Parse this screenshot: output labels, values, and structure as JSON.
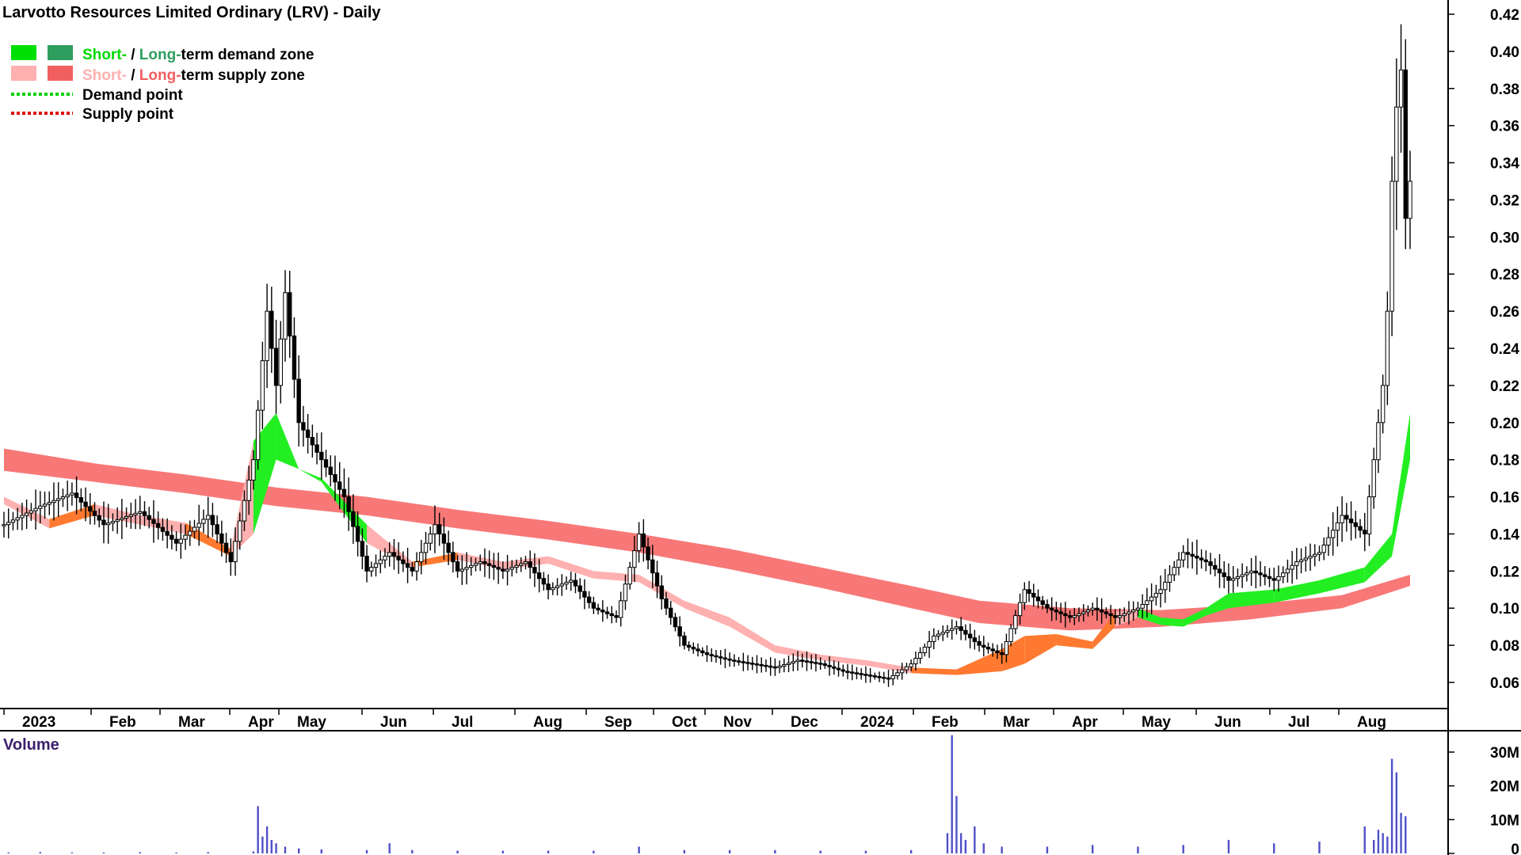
{
  "chart_data": [
    {
      "type": "candlestick",
      "title": "Larvotto Resources Limited Ordinary (LRV) - Daily",
      "ylim": [
        0.05,
        0.42
      ],
      "y_ticks": [
        "0.42",
        "0.40",
        "0.38",
        "0.36",
        "0.34",
        "0.32",
        "0.30",
        "0.28",
        "0.26",
        "0.24",
        "0.22",
        "0.20",
        "0.18",
        "0.16",
        "0.14",
        "0.12",
        "0.10",
        "0.08",
        "0.06"
      ],
      "x_labels": [
        "2023",
        "Feb",
        "Mar",
        "Apr",
        "May",
        "Jun",
        "Jul",
        "Aug",
        "Sep",
        "Oct",
        "Nov",
        "Dec",
        "2024",
        "Feb",
        "Mar",
        "Apr",
        "May",
        "Jun",
        "Jul",
        "Aug"
      ],
      "grid": false,
      "legend_position": "top-left",
      "legend": [
        {
          "short": "Short-",
          "sep": " / ",
          "long": "Long-",
          "rest": "term demand zone",
          "short_color": "#00e000",
          "long_color": "#2e9e5e"
        },
        {
          "short": "Short-",
          "sep": " / ",
          "long": "Long-",
          "rest": "term supply zone",
          "short_color": "#ffb0b0",
          "long_color": "#f06060"
        },
        {
          "label": "Demand point",
          "color": "#00d000"
        },
        {
          "label": "Supply point",
          "color": "#e00000"
        }
      ],
      "series": [
        {
          "kind": "long-term zone",
          "x": [
            0,
            20,
            40,
            60,
            80,
            100,
            120,
            140,
            160,
            180,
            200,
            215,
            235,
            255,
            275,
            295,
            310
          ],
          "upper": [
            0.186,
            0.178,
            0.172,
            0.165,
            0.16,
            0.153,
            0.147,
            0.14,
            0.132,
            0.122,
            0.112,
            0.104,
            0.1,
            0.099,
            0.102,
            0.107,
            0.118
          ],
          "lower": [
            0.174,
            0.168,
            0.162,
            0.155,
            0.15,
            0.143,
            0.137,
            0.13,
            0.121,
            0.111,
            0.1,
            0.092,
            0.088,
            0.09,
            0.094,
            0.1,
            0.112
          ]
        },
        {
          "kind": "short-term zone",
          "x": [
            0,
            10,
            20,
            30,
            40,
            50,
            55,
            60,
            65,
            70,
            80,
            90,
            100,
            110,
            120,
            130,
            140,
            150,
            160,
            170,
            180,
            190,
            200,
            210,
            220,
            225,
            232,
            240,
            245,
            250,
            255,
            260,
            265,
            270,
            280,
            290,
            300,
            306,
            310
          ],
          "upper": [
            0.16,
            0.148,
            0.156,
            0.15,
            0.146,
            0.132,
            0.19,
            0.205,
            0.175,
            0.17,
            0.145,
            0.125,
            0.13,
            0.125,
            0.128,
            0.12,
            0.118,
            0.104,
            0.095,
            0.08,
            0.075,
            0.072,
            0.068,
            0.067,
            0.078,
            0.085,
            0.086,
            0.082,
            0.098,
            0.1,
            0.095,
            0.094,
            0.1,
            0.108,
            0.11,
            0.115,
            0.122,
            0.14,
            0.205
          ],
          "lower": [
            0.156,
            0.143,
            0.15,
            0.145,
            0.14,
            0.128,
            0.14,
            0.18,
            0.175,
            0.168,
            0.135,
            0.122,
            0.126,
            0.121,
            0.124,
            0.116,
            0.114,
            0.1,
            0.09,
            0.076,
            0.072,
            0.069,
            0.065,
            0.064,
            0.066,
            0.07,
            0.08,
            0.078,
            0.09,
            0.095,
            0.091,
            0.09,
            0.096,
            0.1,
            0.103,
            0.108,
            0.114,
            0.128,
            0.18
          ]
        }
      ],
      "close_path": {
        "x": [
          0,
          8,
          15,
          22,
          30,
          38,
          45,
          50,
          55,
          58,
          60,
          62,
          65,
          70,
          75,
          80,
          85,
          90,
          95,
          100,
          105,
          110,
          115,
          120,
          125,
          130,
          135,
          140,
          145,
          150,
          155,
          160,
          165,
          170,
          175,
          180,
          185,
          190,
          195,
          200,
          205,
          210,
          215,
          220,
          225,
          230,
          235,
          240,
          245,
          250,
          255,
          260,
          265,
          270,
          275,
          280,
          285,
          290,
          295,
          300,
          302,
          304,
          305,
          306,
          307,
          308,
          309,
          310
        ],
        "y": [
          0.145,
          0.155,
          0.162,
          0.145,
          0.152,
          0.135,
          0.15,
          0.125,
          0.18,
          0.26,
          0.22,
          0.27,
          0.2,
          0.18,
          0.16,
          0.12,
          0.13,
          0.12,
          0.145,
          0.12,
          0.125,
          0.12,
          0.125,
          0.11,
          0.115,
          0.1,
          0.095,
          0.14,
          0.105,
          0.08,
          0.075,
          0.072,
          0.07,
          0.068,
          0.072,
          0.07,
          0.066,
          0.064,
          0.062,
          0.07,
          0.085,
          0.09,
          0.08,
          0.075,
          0.11,
          0.1,
          0.095,
          0.1,
          0.095,
          0.1,
          0.11,
          0.13,
          0.125,
          0.115,
          0.12,
          0.115,
          0.125,
          0.13,
          0.15,
          0.14,
          0.18,
          0.22,
          0.26,
          0.33,
          0.37,
          0.39,
          0.31,
          0.33
        ]
      }
    },
    {
      "type": "bar",
      "title": "Volume",
      "y_ticks": [
        "30M",
        "20M",
        "10M",
        "0"
      ],
      "ylim": [
        0,
        35
      ],
      "x": [
        1,
        8,
        15,
        22,
        30,
        38,
        45,
        55,
        56,
        57,
        58,
        59,
        60,
        62,
        65,
        70,
        80,
        85,
        90,
        100,
        110,
        120,
        130,
        140,
        150,
        160,
        170,
        180,
        190,
        200,
        208,
        209,
        210,
        211,
        212,
        214,
        216,
        220,
        230,
        240,
        250,
        260,
        270,
        280,
        290,
        300,
        302,
        303,
        304,
        305,
        306,
        307,
        308,
        309
      ],
      "values": [
        0.3,
        0.4,
        0.3,
        0.3,
        0.4,
        0.3,
        0.4,
        0.6,
        14.0,
        5.0,
        8.0,
        4.0,
        3.0,
        2.0,
        1.5,
        1.2,
        1.0,
        3.0,
        1.0,
        0.8,
        0.8,
        0.8,
        0.8,
        2.0,
        1.0,
        1.0,
        1.0,
        0.8,
        0.8,
        1.0,
        6.0,
        35.0,
        17.0,
        6.0,
        4.0,
        8.0,
        3.0,
        2.0,
        2.0,
        2.5,
        2.0,
        2.5,
        4.0,
        3.0,
        3.5,
        8.0,
        4.0,
        7.0,
        6.0,
        5.0,
        28.0,
        24.0,
        12.0,
        11.0
      ]
    }
  ]
}
